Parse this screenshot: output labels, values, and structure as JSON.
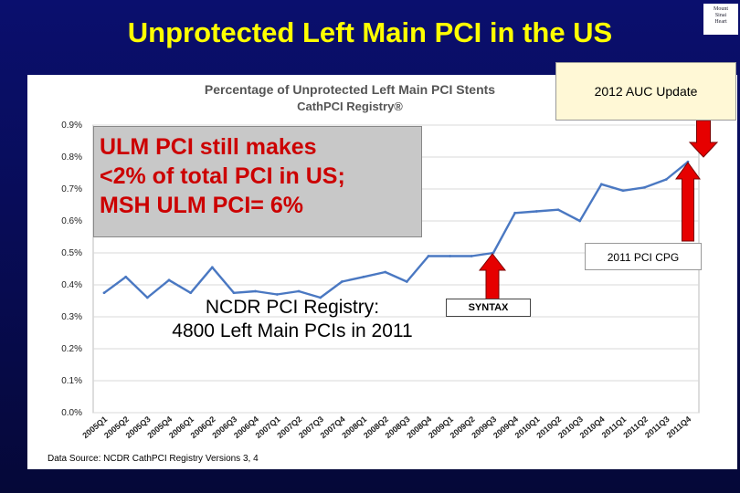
{
  "slide": {
    "title": "Unprotected Left Main PCI in the US",
    "logo_lines": [
      "Mount",
      "Sinai",
      "Heart"
    ]
  },
  "annotations": {
    "auc_update": "2012 AUC Update",
    "callout": "ULM PCI still makes\n<2% of total PCI in US;\nMSH ULM PCI= 6%",
    "cpg": "2011 PCI CPG",
    "ncdr": "NCDR PCI Registry:\n4800 Left Main PCIs in 2011",
    "syntax": "SYNTAX",
    "source": "Data Source: NCDR CathPCI Registry Versions 3, 4"
  },
  "colors": {
    "line": "#4a78c2",
    "arrow": "#e60000",
    "title": "#ffff00",
    "background": "#0a0f6e"
  },
  "chart_data": {
    "type": "line",
    "title": "Percentage of Unprotected Left Main PCI Stents",
    "subtitle": "CathPCI Registry®",
    "categories": [
      "2005Q1",
      "2005Q2",
      "2005Q3",
      "2005Q4",
      "2006Q1",
      "2006Q2",
      "2006Q3",
      "2006Q4",
      "2007Q1",
      "2007Q2",
      "2007Q3",
      "2007Q4",
      "2008Q1",
      "2008Q2",
      "2008Q3",
      "2008Q4",
      "2009Q1",
      "2009Q2",
      "2009Q3",
      "2009Q4",
      "2010Q1",
      "2010Q2",
      "2010Q3",
      "2010Q4",
      "2011Q1",
      "2011Q2",
      "2011Q3",
      "2011Q4"
    ],
    "series": [
      {
        "values": [
          0.375,
          0.425,
          0.36,
          0.415,
          0.375,
          0.455,
          0.375,
          0.38,
          0.37,
          0.38,
          0.36,
          0.41,
          0.425,
          0.44,
          0.41,
          0.49,
          0.49,
          0.49,
          0.5,
          0.625,
          0.63,
          0.635,
          0.6,
          0.715,
          0.695,
          0.705,
          0.73,
          0.785
        ]
      }
    ],
    "ytick_labels": [
      "0.0%",
      "0.1%",
      "0.2%",
      "0.3%",
      "0.4%",
      "0.5%",
      "0.6%",
      "0.7%",
      "0.8%",
      "0.9%"
    ],
    "ylim": [
      0,
      0.9
    ],
    "grid": "horizontal",
    "xlabel": "",
    "ylabel": ""
  }
}
